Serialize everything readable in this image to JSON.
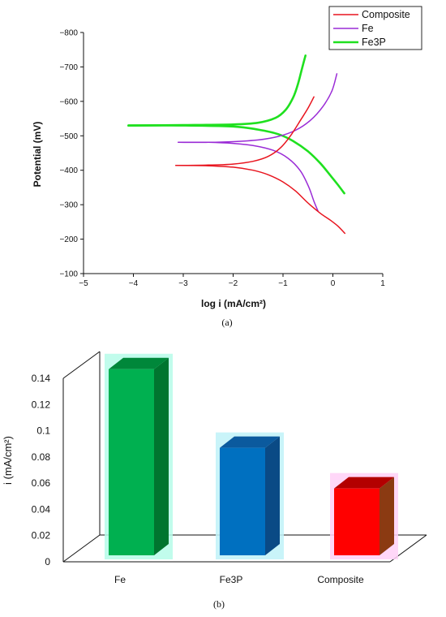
{
  "chart_data": [
    {
      "type": "line",
      "panel_label": "(a)",
      "xlabel": "log i (mA/cm²)",
      "ylabel": "Potential (mV)",
      "xlim": [
        -5,
        1
      ],
      "ylim": [
        -100,
        -800
      ],
      "x_ticks": [
        -5,
        -4,
        -3,
        -2,
        -1,
        0,
        1
      ],
      "x_tick_labels": [
        "−5",
        "−4",
        "−3",
        "−2",
        "−1",
        "0",
        "1"
      ],
      "y_ticks": [
        -100,
        -200,
        -300,
        -400,
        -500,
        -600,
        -700,
        -800
      ],
      "y_tick_labels": [
        "−100",
        "−200",
        "−300",
        "−400",
        "−500",
        "−600",
        "−700",
        "−800"
      ],
      "legend": {
        "placement": "top-right",
        "entries": [
          "Composite",
          "Fe",
          "Fe3P"
        ]
      },
      "series": [
        {
          "name": "Composite",
          "color": "#e8141e",
          "anodic": [
            [
              -3.15,
              -414
            ],
            [
              -2.5,
              -415
            ],
            [
              -2.0,
              -418
            ],
            [
              -1.6,
              -426
            ],
            [
              -1.3,
              -440
            ],
            [
              -1.05,
              -465
            ],
            [
              -0.85,
              -500
            ],
            [
              -0.65,
              -545
            ],
            [
              -0.5,
              -580
            ],
            [
              -0.38,
              -613
            ]
          ],
          "cathodic": [
            [
              -3.15,
              -414
            ],
            [
              -2.5,
              -413
            ],
            [
              -2.0,
              -409
            ],
            [
              -1.6,
              -400
            ],
            [
              -1.3,
              -387
            ],
            [
              -1.0,
              -366
            ],
            [
              -0.75,
              -340
            ],
            [
              -0.5,
              -305
            ],
            [
              -0.25,
              -275
            ],
            [
              -0.05,
              -255
            ],
            [
              0.1,
              -238
            ],
            [
              0.24,
              -217
            ]
          ]
        },
        {
          "name": "Fe",
          "color": "#9a2bd6",
          "anodic": [
            [
              -3.1,
              -481
            ],
            [
              -2.5,
              -481
            ],
            [
              -2.0,
              -483
            ],
            [
              -1.5,
              -488
            ],
            [
              -1.1,
              -498
            ],
            [
              -0.75,
              -516
            ],
            [
              -0.45,
              -545
            ],
            [
              -0.2,
              -585
            ],
            [
              -0.02,
              -630
            ],
            [
              0.08,
              -680
            ]
          ],
          "cathodic": [
            [
              -3.1,
              -481
            ],
            [
              -2.5,
              -481
            ],
            [
              -2.0,
              -478
            ],
            [
              -1.6,
              -472
            ],
            [
              -1.2,
              -458
            ],
            [
              -0.9,
              -435
            ],
            [
              -0.65,
              -398
            ],
            [
              -0.48,
              -350
            ],
            [
              -0.38,
              -310
            ],
            [
              -0.3,
              -282
            ]
          ]
        },
        {
          "name": "Fe3P",
          "color": "#1fe01f",
          "anodic": [
            [
              -4.1,
              -530
            ],
            [
              -3.0,
              -531
            ],
            [
              -2.0,
              -533
            ],
            [
              -1.5,
              -538
            ],
            [
              -1.15,
              -552
            ],
            [
              -0.95,
              -575
            ],
            [
              -0.8,
              -610
            ],
            [
              -0.7,
              -650
            ],
            [
              -0.62,
              -695
            ],
            [
              -0.55,
              -733
            ]
          ],
          "cathodic": [
            [
              -4.1,
              -530
            ],
            [
              -3.0,
              -530
            ],
            [
              -2.0,
              -527
            ],
            [
              -1.5,
              -518
            ],
            [
              -1.1,
              -505
            ],
            [
              -0.8,
              -485
            ],
            [
              -0.5,
              -455
            ],
            [
              -0.25,
              -420
            ],
            [
              -0.05,
              -385
            ],
            [
              0.1,
              -358
            ],
            [
              0.23,
              -333
            ]
          ]
        }
      ]
    },
    {
      "type": "bar",
      "panel_label": "(b)",
      "xlabel": "",
      "ylabel": "i (mA/cm²)",
      "ylim": [
        0,
        0.14
      ],
      "y_ticks": [
        0,
        0.02,
        0.04,
        0.06,
        0.08,
        0.1,
        0.12,
        0.14
      ],
      "y_tick_labels": [
        "0",
        "0.02",
        "0.04",
        "0.06",
        "0.08",
        "0.1",
        "0.12",
        "0.14"
      ],
      "categories": [
        "Fe",
        "Fe3P",
        "Composite"
      ],
      "values": [
        0.142,
        0.082,
        0.051
      ],
      "colors": [
        "#00b050",
        "#0070c0",
        "#ff0000"
      ],
      "side_colors": [
        "#00752f",
        "#0a4a85",
        "#8b3a12"
      ],
      "top_colors": [
        "#00873a",
        "#0b5a9e",
        "#b30000"
      ],
      "glow_colors": [
        "#b6fbe9",
        "#bff2f8",
        "#ffd0f7"
      ],
      "grid": false,
      "style": "3d"
    }
  ]
}
